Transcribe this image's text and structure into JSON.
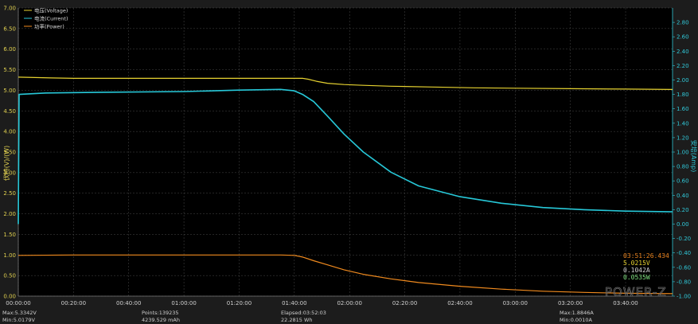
{
  "chart_data": {
    "type": "line",
    "title": "",
    "x_unit": "hh:mm:ss",
    "x_range": [
      "00:00:00",
      "03:57:00"
    ],
    "x_ticks": [
      "00:00:00",
      "00:20:00",
      "00:40:00",
      "01:00:00",
      "01:20:00",
      "01:40:00",
      "02:00:00",
      "02:20:00",
      "02:40:00",
      "03:00:00",
      "03:20:00",
      "03:40:00"
    ],
    "y_left": {
      "label": "伏特(V)/(W)",
      "ylim": [
        0.0,
        7.0
      ],
      "ticks": [
        "0.00",
        "0.50",
        "1.00",
        "1.50",
        "2.00",
        "2.50",
        "3.00",
        "3.50",
        "4.00",
        "4.50",
        "5.00",
        "5.50",
        "6.00",
        "6.50",
        "7.00"
      ]
    },
    "y_right": {
      "label": "安培(Amp)",
      "ylim": [
        -1.0,
        3.0
      ],
      "ticks": [
        "-1.00",
        "-0.80",
        "-0.60",
        "-0.40",
        "-0.20",
        "0.00",
        "0.20",
        "0.40",
        "0.60",
        "0.80",
        "1.00",
        "1.20",
        "1.40",
        "1.60",
        "1.80",
        "2.00",
        "2.20",
        "2.40",
        "2.60",
        "2.80"
      ]
    },
    "grid": true,
    "legend": [
      {
        "name": "电压(Voltage)",
        "color": "#e6d230"
      },
      {
        "name": "电流(Current)",
        "color": "#27c8d8"
      },
      {
        "name": "功率(Power)",
        "color": "#f08a1e"
      }
    ],
    "series": [
      {
        "name": "电压(Voltage)",
        "axis": "left",
        "color": "#e6d230",
        "x_min": [
          0,
          12,
          20,
          40,
          60,
          80,
          103,
          105,
          108,
          112,
          118,
          125,
          135,
          150,
          165,
          180,
          200,
          220,
          237
        ],
        "y": [
          5.32,
          5.3,
          5.29,
          5.29,
          5.29,
          5.29,
          5.29,
          5.27,
          5.22,
          5.17,
          5.14,
          5.12,
          5.1,
          5.08,
          5.06,
          5.05,
          5.04,
          5.03,
          5.02
        ]
      },
      {
        "name": "电流(Current)",
        "axis": "right",
        "color": "#27c8d8",
        "x_min": [
          0,
          0.3,
          10,
          30,
          60,
          80,
          95,
          100,
          103,
          107,
          112,
          118,
          125,
          135,
          145,
          160,
          175,
          190,
          205,
          220,
          237
        ],
        "y": [
          0.0,
          1.8,
          1.82,
          1.83,
          1.84,
          1.86,
          1.87,
          1.85,
          1.8,
          1.7,
          1.5,
          1.25,
          1.0,
          0.72,
          0.53,
          0.38,
          0.29,
          0.23,
          0.2,
          0.18,
          0.17
        ]
      },
      {
        "name": "功率(Power)",
        "axis": "left",
        "color": "#f08a1e",
        "x_min": [
          0,
          20,
          40,
          60,
          80,
          95,
          100,
          103,
          107,
          112,
          118,
          125,
          135,
          145,
          160,
          175,
          190,
          205,
          220,
          237
        ],
        "y": [
          0.99,
          1.0,
          1.0,
          1.0,
          1.0,
          1.0,
          0.99,
          0.95,
          0.86,
          0.76,
          0.64,
          0.53,
          0.42,
          0.33,
          0.24,
          0.17,
          0.12,
          0.09,
          0.07,
          0.06
        ]
      }
    ],
    "cursor_readout": {
      "time": "03:51:26.434",
      "voltage": "5.0215V",
      "current": "0.1042A",
      "power": "0.0535W"
    }
  },
  "footer": {
    "max_v": "Max:5.3342V",
    "min_v": "Min:5.0179V",
    "points": "Points:139235",
    "mah": "4239.529 mAh",
    "elapsed": "Elapsed:03:52:03",
    "wh": "22.2815 Wh",
    "max_a": "Max:1.8846A",
    "min_a": "Min:0.0010A"
  },
  "watermark": "POWER-Z",
  "colors": {
    "background": "#1c1c1c",
    "plot": "#000000",
    "grid": "#4a4a4a",
    "tick_left": "#e0d050",
    "tick_right": "#30c8d8",
    "tick_x": "#d0d0d0"
  }
}
